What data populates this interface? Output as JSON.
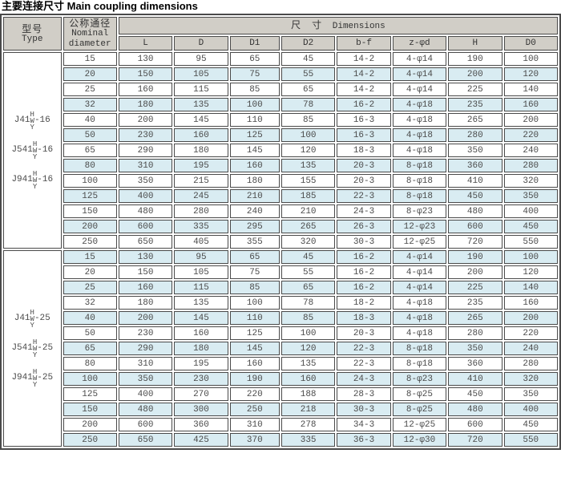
{
  "title": "主要连接尺寸 Main coupling dimensions",
  "colors": {
    "header_bg": "#d1cec7",
    "stripe_bg": "#d9ecf2",
    "border": "#4a4a4a",
    "text": "#4a4a4a"
  },
  "table": {
    "header": {
      "type_cn": "型号",
      "type_en": "Type",
      "nominal_cn": "公称通径",
      "nominal_en_line1": "Nominal",
      "nominal_en_line2": "diameter",
      "dimensions_cn": "尺　寸",
      "dimensions_en": "Dimensions",
      "columns": [
        "L",
        "D",
        "D1",
        "D2",
        "b-f",
        "z-φd",
        "H",
        "D0"
      ]
    },
    "groups": [
      {
        "types": [
          {
            "prefix": "J41",
            "stack_top": "H",
            "stack_mid": "W",
            "stack_bottom": "Y",
            "suffix": "-16"
          },
          {
            "prefix": "J541",
            "stack_top": "H",
            "stack_mid": "W",
            "stack_bottom": "Y",
            "suffix": "-16"
          },
          {
            "prefix": "J941",
            "stack_top": "H",
            "stack_mid": "W",
            "stack_bottom": "Y",
            "suffix": "-16"
          }
        ],
        "rows": [
          [
            "15",
            "130",
            "95",
            "65",
            "45",
            "14-2",
            "4-φ14",
            "190",
            "100"
          ],
          [
            "20",
            "150",
            "105",
            "75",
            "55",
            "14-2",
            "4-φ14",
            "200",
            "120"
          ],
          [
            "25",
            "160",
            "115",
            "85",
            "65",
            "14-2",
            "4-φ14",
            "225",
            "140"
          ],
          [
            "32",
            "180",
            "135",
            "100",
            "78",
            "16-2",
            "4-φ18",
            "235",
            "160"
          ],
          [
            "40",
            "200",
            "145",
            "110",
            "85",
            "16-3",
            "4-φ18",
            "265",
            "200"
          ],
          [
            "50",
            "230",
            "160",
            "125",
            "100",
            "16-3",
            "4-φ18",
            "280",
            "220"
          ],
          [
            "65",
            "290",
            "180",
            "145",
            "120",
            "18-3",
            "4-φ18",
            "350",
            "240"
          ],
          [
            "80",
            "310",
            "195",
            "160",
            "135",
            "20-3",
            "8-φ18",
            "360",
            "280"
          ],
          [
            "100",
            "350",
            "215",
            "180",
            "155",
            "20-3",
            "8-φ18",
            "410",
            "320"
          ],
          [
            "125",
            "400",
            "245",
            "210",
            "185",
            "22-3",
            "8-φ18",
            "450",
            "350"
          ],
          [
            "150",
            "480",
            "280",
            "240",
            "210",
            "24-3",
            "8-φ23",
            "480",
            "400"
          ],
          [
            "200",
            "600",
            "335",
            "295",
            "265",
            "26-3",
            "12-φ23",
            "600",
            "450"
          ],
          [
            "250",
            "650",
            "405",
            "355",
            "320",
            "30-3",
            "12-φ25",
            "720",
            "550"
          ]
        ]
      },
      {
        "types": [
          {
            "prefix": "J41",
            "stack_top": "H",
            "stack_mid": "W",
            "stack_bottom": "Y",
            "suffix": "-25"
          },
          {
            "prefix": "J541",
            "stack_top": "H",
            "stack_mid": "W",
            "stack_bottom": "Y",
            "suffix": "-25"
          },
          {
            "prefix": "J941",
            "stack_top": "H",
            "stack_mid": "W",
            "stack_bottom": "Y",
            "suffix": "-25"
          }
        ],
        "rows": [
          [
            "15",
            "130",
            "95",
            "65",
            "45",
            "16-2",
            "4-φ14",
            "190",
            "100"
          ],
          [
            "20",
            "150",
            "105",
            "75",
            "55",
            "16-2",
            "4-φ14",
            "200",
            "120"
          ],
          [
            "25",
            "160",
            "115",
            "85",
            "65",
            "16-2",
            "4-φ14",
            "225",
            "140"
          ],
          [
            "32",
            "180",
            "135",
            "100",
            "78",
            "18-2",
            "4-φ18",
            "235",
            "160"
          ],
          [
            "40",
            "200",
            "145",
            "110",
            "85",
            "18-3",
            "4-φ18",
            "265",
            "200"
          ],
          [
            "50",
            "230",
            "160",
            "125",
            "100",
            "20-3",
            "4-φ18",
            "280",
            "220"
          ],
          [
            "65",
            "290",
            "180",
            "145",
            "120",
            "22-3",
            "8-φ18",
            "350",
            "240"
          ],
          [
            "80",
            "310",
            "195",
            "160",
            "135",
            "22-3",
            "8-φ18",
            "360",
            "280"
          ],
          [
            "100",
            "350",
            "230",
            "190",
            "160",
            "24-3",
            "8-φ23",
            "410",
            "320"
          ],
          [
            "125",
            "400",
            "270",
            "220",
            "188",
            "28-3",
            "8-φ25",
            "450",
            "350"
          ],
          [
            "150",
            "480",
            "300",
            "250",
            "218",
            "30-3",
            "8-φ25",
            "480",
            "400"
          ],
          [
            "200",
            "600",
            "360",
            "310",
            "278",
            "34-3",
            "12-φ25",
            "600",
            "450"
          ],
          [
            "250",
            "650",
            "425",
            "370",
            "335",
            "36-3",
            "12-φ30",
            "720",
            "550"
          ]
        ]
      }
    ]
  }
}
